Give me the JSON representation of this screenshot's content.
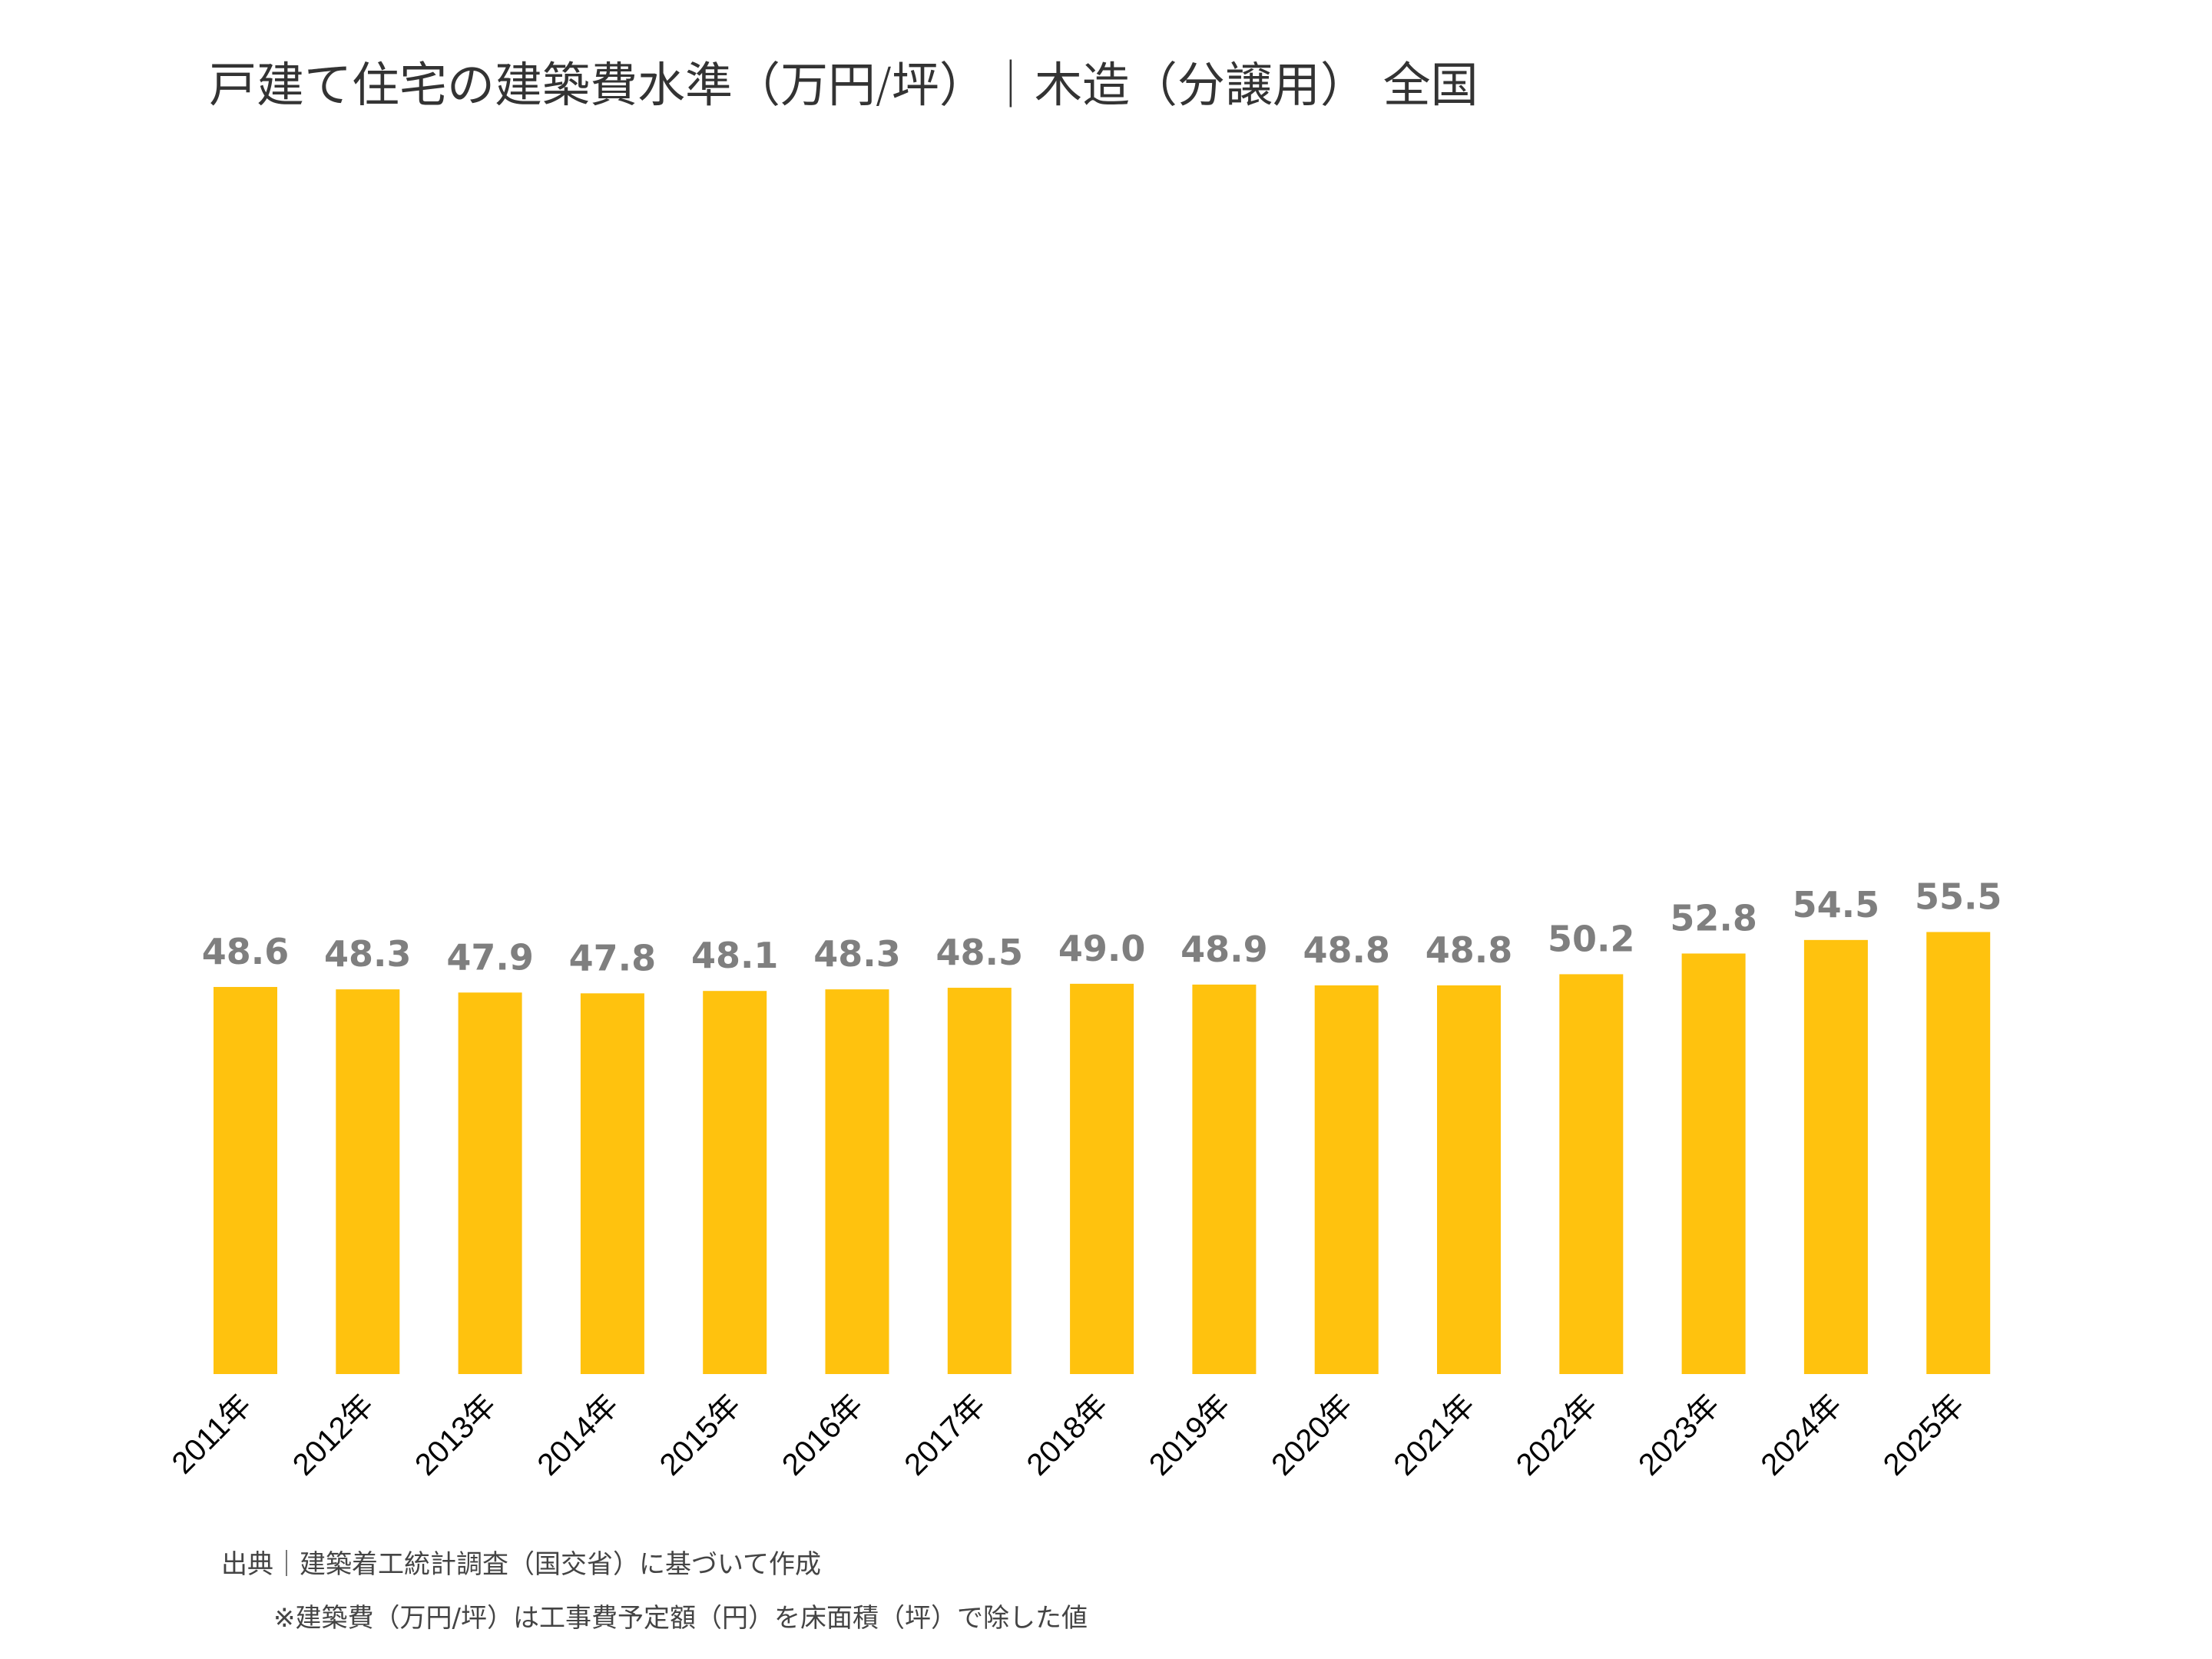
{
  "chart_data": {
    "type": "bar",
    "title": "戸建て住宅の建築費水準（万円/坪）｜木造（分譲用） 全国",
    "categories": [
      "2011年",
      "2012年",
      "2013年",
      "2014年",
      "2015年",
      "2016年",
      "2017年",
      "2018年",
      "2019年",
      "2020年",
      "2021年",
      "2022年",
      "2023年",
      "2024年",
      "2025年"
    ],
    "values": [
      48.6,
      48.3,
      47.9,
      47.8,
      48.1,
      48.3,
      48.5,
      49.0,
      48.9,
      48.8,
      48.8,
      50.2,
      52.8,
      54.5,
      55.5
    ],
    "value_labels": [
      "48.6",
      "48.3",
      "47.9",
      "47.8",
      "48.1",
      "48.3",
      "48.5",
      "49.0",
      "48.9",
      "48.8",
      "48.8",
      "50.2",
      "52.8",
      "54.5",
      "55.5"
    ],
    "xlabel": "",
    "ylabel": "",
    "ylim": [
      0,
      103
    ],
    "grid": false,
    "bar_color": "#FFC20E",
    "label_color": "#7F7F7F"
  },
  "notes": {
    "source": "出典｜建築着工統計調査（国交省）に基づいて作成",
    "footnote": "※建築費（万円/坪）は工事費予定額（円）を床面積（坪）で除した値"
  }
}
